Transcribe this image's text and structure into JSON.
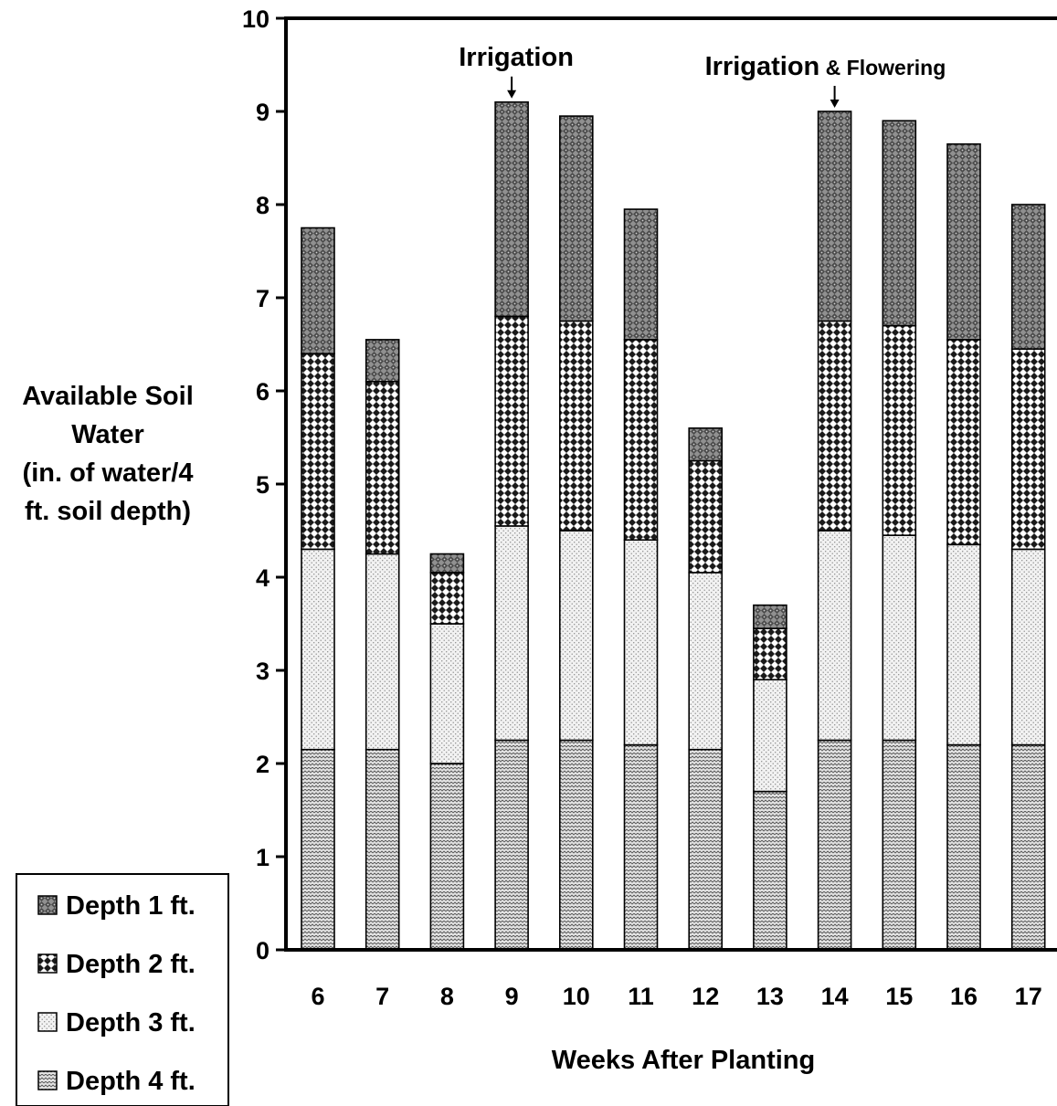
{
  "chart_data": {
    "type": "bar",
    "stacked": true,
    "categories": [
      "6",
      "7",
      "8",
      "9",
      "10",
      "11",
      "12",
      "13",
      "14",
      "15",
      "16",
      "17"
    ],
    "series": [
      {
        "name": "Depth 4 ft.",
        "values": [
          2.15,
          2.15,
          2.0,
          2.25,
          2.25,
          2.2,
          2.15,
          1.7,
          2.25,
          2.25,
          2.2,
          2.2
        ]
      },
      {
        "name": "Depth 3 ft.",
        "values": [
          2.15,
          2.1,
          1.5,
          2.3,
          2.25,
          2.2,
          1.9,
          1.2,
          2.25,
          2.2,
          2.15,
          2.1
        ]
      },
      {
        "name": "Depth 2 ft.",
        "values": [
          2.1,
          1.85,
          0.55,
          2.25,
          2.25,
          2.15,
          1.2,
          0.55,
          2.25,
          2.25,
          2.2,
          2.15
        ]
      },
      {
        "name": "Depth 1 ft.",
        "values": [
          1.35,
          0.45,
          0.2,
          2.3,
          2.2,
          1.4,
          0.35,
          0.25,
          2.25,
          2.2,
          2.1,
          1.55
        ]
      }
    ],
    "ylim": [
      0,
      10
    ],
    "yticks": [
      "0",
      "1",
      "2",
      "3",
      "4",
      "5",
      "6",
      "7",
      "8",
      "9",
      "10"
    ],
    "xlabel": "Weeks After Planting",
    "ylabel": [
      "Available Soil",
      "Water",
      "(in. of water/4",
      "ft. soil depth)"
    ],
    "grid": false,
    "legend_position": "bottom-left",
    "legend_order": [
      "Depth 1 ft.",
      "Depth 2 ft.",
      "Depth 3 ft.",
      "Depth 4 ft."
    ],
    "annotations": [
      {
        "category": "9",
        "label": "Irrigation",
        "label_small": ""
      },
      {
        "category": "14",
        "label": "Irrigation",
        "label_small": " & Flowering"
      }
    ]
  }
}
